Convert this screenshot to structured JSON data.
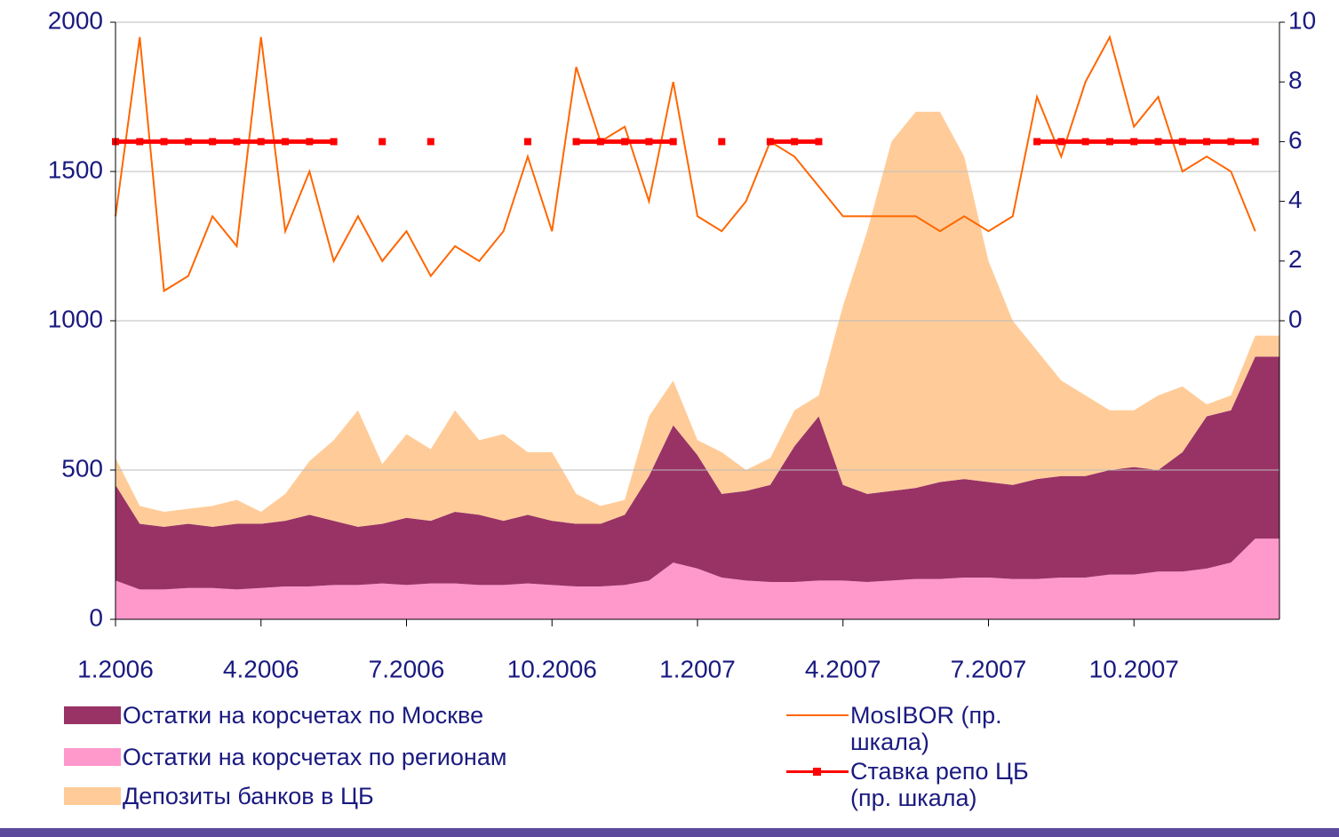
{
  "chart_data": {
    "type": "stacked-area-line",
    "categories": [
      "1.2006",
      null,
      null,
      null,
      null,
      null,
      "4.2006",
      null,
      null,
      null,
      null,
      null,
      "7.2006",
      null,
      null,
      null,
      null,
      null,
      "10.2006",
      null,
      null,
      null,
      null,
      null,
      "1.2007",
      null,
      null,
      null,
      null,
      null,
      "4.2007",
      null,
      null,
      null,
      null,
      null,
      "7.2007",
      null,
      null,
      null,
      null,
      null,
      "10.2007",
      null,
      null,
      null,
      null,
      null
    ],
    "ylim": [
      0,
      2000
    ],
    "yticks": [
      0,
      500,
      1000,
      1500,
      2000
    ],
    "y2lim": [
      -10,
      10
    ],
    "y2ticks": [
      0,
      2,
      4,
      6,
      8,
      10
    ],
    "grid": true,
    "series": [
      {
        "name": "Остатки на корсчетах по регионам",
        "color": "#ff99cc",
        "kind": "area",
        "values": [
          130,
          100,
          100,
          105,
          105,
          100,
          105,
          110,
          110,
          115,
          115,
          120,
          115,
          120,
          120,
          115,
          115,
          120,
          115,
          110,
          110,
          115,
          130,
          190,
          170,
          140,
          130,
          125,
          125,
          130,
          130,
          125,
          130,
          135,
          135,
          140,
          140,
          135,
          135,
          140,
          140,
          150,
          150,
          160,
          160,
          170,
          190,
          270
        ]
      },
      {
        "name": "Остатки на корсчетах по Москве",
        "color": "#993366",
        "kind": "area",
        "values": [
          320,
          220,
          210,
          215,
          205,
          220,
          215,
          220,
          240,
          215,
          195,
          200,
          225,
          210,
          240,
          235,
          215,
          230,
          215,
          210,
          210,
          235,
          350,
          460,
          380,
          280,
          300,
          325,
          455,
          550,
          320,
          295,
          300,
          305,
          325,
          330,
          320,
          315,
          335,
          340,
          340,
          350,
          360,
          340,
          400,
          510,
          510,
          610
        ]
      },
      {
        "name": "Депозиты банков в ЦБ",
        "color": "#ffcc99",
        "kind": "area",
        "values": [
          90,
          60,
          50,
          50,
          70,
          80,
          40,
          90,
          180,
          270,
          390,
          200,
          280,
          240,
          340,
          250,
          290,
          210,
          230,
          100,
          60,
          50,
          200,
          150,
          50,
          140,
          70,
          90,
          120,
          70,
          600,
          880,
          1170,
          1260,
          1240,
          1080,
          740,
          550,
          430,
          320,
          270,
          200,
          190,
          250,
          220,
          40,
          50,
          70
        ]
      },
      {
        "name": "MosIBOR (пр. шкала)",
        "color": "#ff6600",
        "kind": "line",
        "axis": "y2",
        "values": [
          3.5,
          9.5,
          1.0,
          1.5,
          3.5,
          2.5,
          9.5,
          3.0,
          5.0,
          2.0,
          3.5,
          2.0,
          3.0,
          1.5,
          2.5,
          2.0,
          3.0,
          5.5,
          3.0,
          8.5,
          6.0,
          6.5,
          4.0,
          8.0,
          3.5,
          3.0,
          4.0,
          6.0,
          5.5,
          4.5,
          3.5,
          3.5,
          3.5,
          3.5,
          3.0,
          3.5,
          3.0,
          3.5,
          7.5,
          5.5,
          8.0,
          9.5,
          6.5,
          7.5,
          5.0,
          5.5,
          5.0,
          3.0
        ]
      },
      {
        "name": "Ставка репо ЦБ (пр. шкала)",
        "color": "#ff0000",
        "kind": "marker-line",
        "axis": "y2",
        "values": [
          6,
          6,
          6,
          6,
          6,
          6,
          6,
          6,
          6,
          6,
          null,
          6,
          null,
          6,
          null,
          null,
          null,
          6,
          null,
          6,
          6,
          6,
          6,
          6,
          null,
          6,
          null,
          6,
          6,
          6,
          null,
          null,
          null,
          null,
          null,
          null,
          null,
          null,
          6,
          6,
          6,
          6,
          6,
          6,
          6,
          6,
          6,
          6
        ]
      }
    ]
  }
}
